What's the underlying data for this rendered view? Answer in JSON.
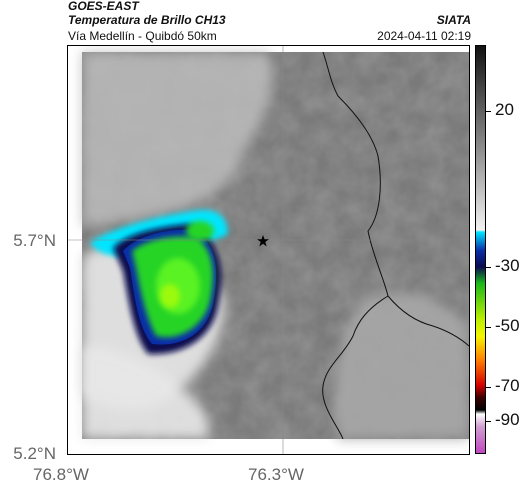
{
  "header": {
    "satellite": "GOES-EAST",
    "product": "Temperatura de Brillo CH13",
    "org": "SIATA",
    "region": "Vía Medellín - Quibdó 50km",
    "timestamp": "2024-04-11 02:19"
  },
  "map": {
    "lat_labels": [
      "5.7°N",
      "5.2°N"
    ],
    "lon_labels": [
      "76.8°W",
      "76.3°W"
    ],
    "marker_icon": "star-icon"
  },
  "colorbar": {
    "labels": [
      "20",
      "-30",
      "-50",
      "-70",
      "-90"
    ],
    "colors": {
      "cyan": "#00e5ff",
      "blue": "#0a2ea8",
      "navy": "#0a0a50",
      "green": "#28d428",
      "yellow": "#f5f500",
      "orange": "#ff7a00",
      "red": "#d40000",
      "black": "#000000",
      "magenta": "#c040c0"
    }
  }
}
